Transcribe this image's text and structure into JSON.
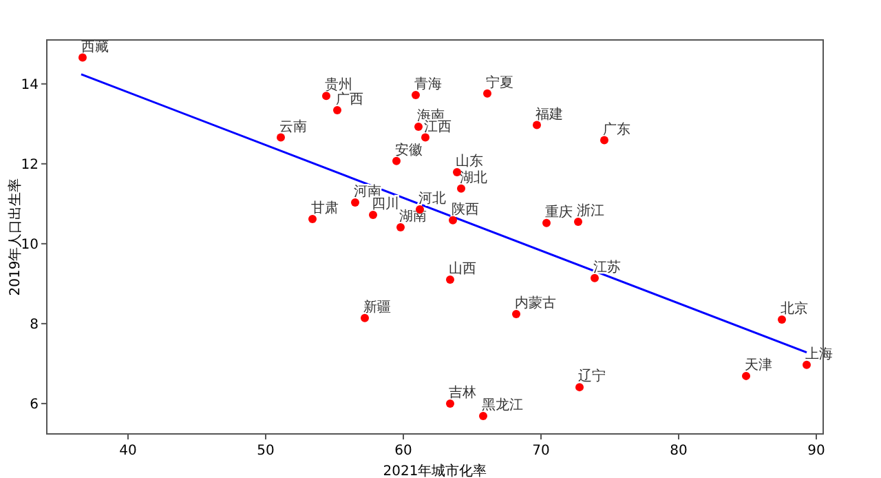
{
  "chart_data": {
    "type": "scatter",
    "xlabel": "2021年城市化率",
    "ylabel": "2019年人口出生率",
    "xlim": [
      34.1,
      90.5
    ],
    "ylim": [
      5.24,
      15.1
    ],
    "xticks": [
      40,
      50,
      60,
      70,
      80,
      90
    ],
    "yticks": [
      6,
      8,
      10,
      12,
      14
    ],
    "grid": false,
    "series": [
      {
        "marker": "circle",
        "color": "#ff0000",
        "x": [
          36.7,
          51.1,
          53.4,
          54.4,
          55.2,
          56.5,
          57.8,
          57.2,
          59.8,
          59.5,
          60.9,
          61.1,
          61.6,
          61.2,
          63.9,
          64.2,
          63.6,
          63.4,
          63.4,
          65.8,
          66.1,
          68.2,
          69.7,
          70.4,
          72.7,
          73.9,
          72.8,
          74.6,
          87.5,
          84.9,
          89.3
        ],
        "values": [
          14.66,
          12.66,
          10.62,
          13.7,
          13.34,
          11.03,
          10.72,
          8.14,
          10.41,
          12.07,
          13.72,
          12.93,
          12.66,
          10.86,
          11.79,
          11.38,
          10.59,
          9.1,
          6.0,
          5.69,
          13.76,
          8.24,
          12.97,
          10.52,
          10.55,
          9.14,
          6.41,
          12.59,
          8.1,
          6.69,
          6.97
        ]
      },
      {
        "type": "line",
        "color": "#0000ff",
        "x": [
          36.6,
          89.3
        ],
        "values": [
          14.24,
          7.28
        ]
      }
    ],
    "annotations": [
      {
        "text": "西藏",
        "x": 36.7,
        "y": 14.66
      },
      {
        "text": "云南",
        "x": 51.1,
        "y": 12.66
      },
      {
        "text": "甘肃",
        "x": 53.4,
        "y": 10.62
      },
      {
        "text": "贵州",
        "x": 54.4,
        "y": 13.7
      },
      {
        "text": "广西",
        "x": 55.2,
        "y": 13.34
      },
      {
        "text": "河南",
        "x": 56.5,
        "y": 11.03
      },
      {
        "text": "四川",
        "x": 57.8,
        "y": 10.72
      },
      {
        "text": "新疆",
        "x": 57.2,
        "y": 8.14
      },
      {
        "text": "湖南",
        "x": 59.8,
        "y": 10.41
      },
      {
        "text": "安徽",
        "x": 59.5,
        "y": 12.07
      },
      {
        "text": "青海",
        "x": 60.9,
        "y": 13.72
      },
      {
        "text": "海南",
        "x": 61.1,
        "y": 12.93
      },
      {
        "text": "江西",
        "x": 61.6,
        "y": 12.66
      },
      {
        "text": "河北",
        "x": 61.2,
        "y": 10.86
      },
      {
        "text": "山东",
        "x": 63.9,
        "y": 11.79
      },
      {
        "text": "湖北",
        "x": 64.2,
        "y": 11.38
      },
      {
        "text": "陕西",
        "x": 63.6,
        "y": 10.59
      },
      {
        "text": "山西",
        "x": 63.4,
        "y": 9.1
      },
      {
        "text": "吉林",
        "x": 63.4,
        "y": 6.0
      },
      {
        "text": "黑龙江",
        "x": 65.8,
        "y": 5.69
      },
      {
        "text": "宁夏",
        "x": 66.1,
        "y": 13.76
      },
      {
        "text": "内蒙古",
        "x": 68.2,
        "y": 8.24
      },
      {
        "text": "福建",
        "x": 69.7,
        "y": 12.97
      },
      {
        "text": "重庆",
        "x": 70.4,
        "y": 10.52
      },
      {
        "text": "浙江",
        "x": 72.7,
        "y": 10.55
      },
      {
        "text": "江苏",
        "x": 73.9,
        "y": 9.14
      },
      {
        "text": "辽宁",
        "x": 72.8,
        "y": 6.41
      },
      {
        "text": "广东",
        "x": 74.6,
        "y": 12.59
      },
      {
        "text": "北京",
        "x": 87.5,
        "y": 8.1
      },
      {
        "text": "天津",
        "x": 84.9,
        "y": 6.69
      },
      {
        "text": "上海",
        "x": 89.3,
        "y": 6.97
      }
    ]
  }
}
